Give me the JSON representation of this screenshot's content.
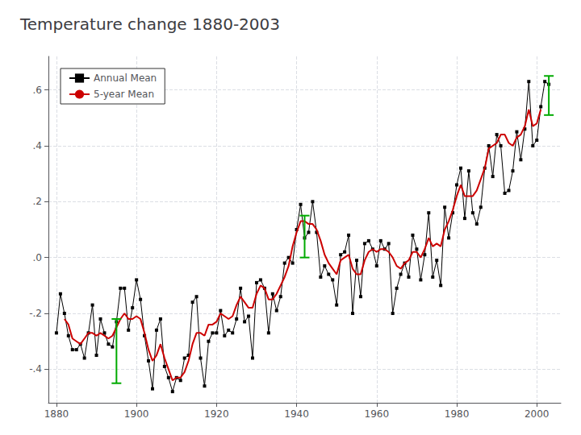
{
  "chart_data": {
    "type": "line",
    "title": "Temperature change 1880-2003",
    "xlim": [
      1878,
      2006
    ],
    "ylim": [
      -0.52,
      0.72
    ],
    "xticks": [
      1880,
      1900,
      1920,
      1940,
      1960,
      1980,
      2000
    ],
    "yticks": [
      {
        "value": -0.4,
        "label": "-.4"
      },
      {
        "value": -0.2,
        "label": "-.2"
      },
      {
        "value": 0.0,
        "label": ".0"
      },
      {
        "value": 0.2,
        "label": ".2"
      },
      {
        "value": 0.4,
        "label": ".4"
      },
      {
        "value": 0.6,
        "label": ".6"
      }
    ],
    "grid": true,
    "legend": "upper left",
    "series": [
      {
        "name": "Annual Mean",
        "color": "#000000",
        "marker": "square",
        "x": [
          1880,
          1881,
          1882,
          1883,
          1884,
          1885,
          1886,
          1887,
          1888,
          1889,
          1890,
          1891,
          1892,
          1893,
          1894,
          1895,
          1896,
          1897,
          1898,
          1899,
          1900,
          1901,
          1902,
          1903,
          1904,
          1905,
          1906,
          1907,
          1908,
          1909,
          1910,
          1911,
          1912,
          1913,
          1914,
          1915,
          1916,
          1917,
          1918,
          1919,
          1920,
          1921,
          1922,
          1923,
          1924,
          1925,
          1926,
          1927,
          1928,
          1929,
          1930,
          1931,
          1932,
          1933,
          1934,
          1935,
          1936,
          1937,
          1938,
          1939,
          1940,
          1941,
          1942,
          1943,
          1944,
          1945,
          1946,
          1947,
          1948,
          1949,
          1950,
          1951,
          1952,
          1953,
          1954,
          1955,
          1956,
          1957,
          1958,
          1959,
          1960,
          1961,
          1962,
          1963,
          1964,
          1965,
          1966,
          1967,
          1968,
          1969,
          1970,
          1971,
          1972,
          1973,
          1974,
          1975,
          1976,
          1977,
          1978,
          1979,
          1980,
          1981,
          1982,
          1983,
          1984,
          1985,
          1986,
          1987,
          1988,
          1989,
          1990,
          1991,
          1992,
          1993,
          1994,
          1995,
          1996,
          1997,
          1998,
          1999,
          2000,
          2001,
          2002,
          2003
        ],
        "values": [
          -0.27,
          -0.13,
          -0.2,
          -0.28,
          -0.33,
          -0.33,
          -0.31,
          -0.36,
          -0.27,
          -0.17,
          -0.35,
          -0.22,
          -0.27,
          -0.31,
          -0.32,
          -0.23,
          -0.11,
          -0.11,
          -0.26,
          -0.18,
          -0.08,
          -0.15,
          -0.28,
          -0.37,
          -0.47,
          -0.26,
          -0.22,
          -0.39,
          -0.43,
          -0.48,
          -0.43,
          -0.44,
          -0.36,
          -0.35,
          -0.16,
          -0.14,
          -0.36,
          -0.46,
          -0.3,
          -0.27,
          -0.27,
          -0.19,
          -0.28,
          -0.26,
          -0.27,
          -0.22,
          -0.11,
          -0.23,
          -0.21,
          -0.36,
          -0.09,
          -0.08,
          -0.11,
          -0.27,
          -0.13,
          -0.19,
          -0.14,
          -0.02,
          -0.0,
          -0.02,
          0.1,
          0.19,
          0.07,
          0.09,
          0.2,
          0.09,
          -0.07,
          -0.03,
          -0.06,
          -0.08,
          -0.17,
          0.01,
          0.02,
          0.08,
          -0.2,
          -0.01,
          -0.14,
          0.05,
          0.06,
          0.03,
          -0.03,
          0.06,
          0.03,
          0.05,
          -0.2,
          -0.11,
          -0.06,
          -0.02,
          -0.07,
          0.08,
          0.03,
          -0.08,
          0.01,
          0.16,
          -0.07,
          -0.01,
          -0.1,
          0.18,
          0.07,
          0.16,
          0.26,
          0.32,
          0.14,
          0.31,
          0.16,
          0.12,
          0.18,
          0.32,
          0.4,
          0.29,
          0.44,
          0.4,
          0.23,
          0.24,
          0.31,
          0.45,
          0.35,
          0.46,
          0.63,
          0.4,
          0.42,
          0.54,
          0.63,
          0.62
        ]
      },
      {
        "name": "5-year Mean",
        "color": "#cc0000",
        "x": [
          1882,
          1883,
          1884,
          1885,
          1886,
          1887,
          1888,
          1889,
          1890,
          1891,
          1892,
          1893,
          1894,
          1895,
          1896,
          1897,
          1898,
          1899,
          1900,
          1901,
          1902,
          1903,
          1904,
          1905,
          1906,
          1907,
          1908,
          1909,
          1910,
          1911,
          1912,
          1913,
          1914,
          1915,
          1916,
          1917,
          1918,
          1919,
          1920,
          1921,
          1922,
          1923,
          1924,
          1925,
          1926,
          1927,
          1928,
          1929,
          1930,
          1931,
          1932,
          1933,
          1934,
          1935,
          1936,
          1937,
          1938,
          1939,
          1940,
          1941,
          1942,
          1943,
          1944,
          1945,
          1946,
          1947,
          1948,
          1949,
          1950,
          1951,
          1952,
          1953,
          1954,
          1955,
          1956,
          1957,
          1958,
          1959,
          1960,
          1961,
          1962,
          1963,
          1964,
          1965,
          1966,
          1967,
          1968,
          1969,
          1970,
          1971,
          1972,
          1973,
          1974,
          1975,
          1976,
          1977,
          1978,
          1979,
          1980,
          1981,
          1982,
          1983,
          1984,
          1985,
          1986,
          1987,
          1988,
          1989,
          1990,
          1991,
          1992,
          1993,
          1994,
          1995,
          1996,
          1997,
          1998,
          1999,
          2000,
          2001
        ],
        "values": [
          -0.22,
          -0.24,
          -0.29,
          -0.3,
          -0.31,
          -0.29,
          -0.27,
          -0.27,
          -0.28,
          -0.27,
          -0.28,
          -0.29,
          -0.28,
          -0.25,
          -0.22,
          -0.2,
          -0.22,
          -0.22,
          -0.21,
          -0.22,
          -0.27,
          -0.33,
          -0.37,
          -0.35,
          -0.31,
          -0.36,
          -0.4,
          -0.44,
          -0.43,
          -0.43,
          -0.41,
          -0.37,
          -0.31,
          -0.27,
          -0.27,
          -0.28,
          -0.24,
          -0.24,
          -0.23,
          -0.2,
          -0.21,
          -0.22,
          -0.21,
          -0.17,
          -0.14,
          -0.16,
          -0.18,
          -0.18,
          -0.13,
          -0.1,
          -0.11,
          -0.15,
          -0.15,
          -0.13,
          -0.1,
          -0.07,
          -0.03,
          0.04,
          0.09,
          0.13,
          0.13,
          0.12,
          0.12,
          0.1,
          0.06,
          0.01,
          -0.02,
          -0.04,
          -0.06,
          -0.01,
          0.0,
          0.01,
          -0.04,
          -0.06,
          -0.06,
          -0.01,
          0.02,
          0.03,
          0.02,
          0.03,
          0.03,
          0.02,
          0.0,
          -0.03,
          -0.04,
          -0.02,
          -0.01,
          0.02,
          0.02,
          0.0,
          0.03,
          0.07,
          0.04,
          0.05,
          0.04,
          0.1,
          0.13,
          0.17,
          0.22,
          0.26,
          0.22,
          0.22,
          0.22,
          0.24,
          0.28,
          0.32,
          0.39,
          0.4,
          0.41,
          0.44,
          0.44,
          0.41,
          0.4,
          0.43,
          0.44,
          0.47,
          0.53,
          0.47,
          0.48,
          0.53
        ]
      },
      {
        "type": "errorbar",
        "color": "#00aa00",
        "x": [
          1895,
          1942,
          2003
        ],
        "low": [
          -0.45,
          0.0,
          0.51
        ],
        "high": [
          -0.22,
          0.15,
          0.65
        ]
      }
    ]
  }
}
